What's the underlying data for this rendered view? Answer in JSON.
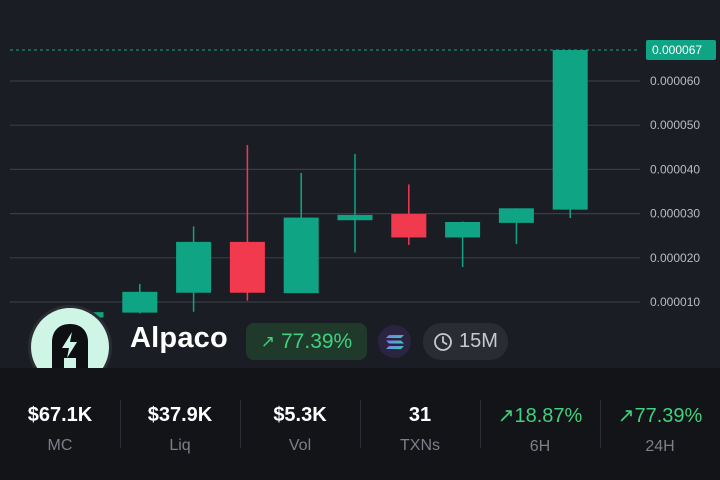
{
  "token": {
    "name": "Alpaco",
    "change": "77.39%",
    "change_arrow": "↗",
    "timeframe": "15M"
  },
  "colors": {
    "up": "#0fa584",
    "down": "#f23a4f",
    "positive_text": "#3fd17f",
    "price_tag": "#0fa584"
  },
  "icons": {
    "logo": "alpaco-logo",
    "chain": "solana-icon",
    "timeframe": "clock-icon",
    "trend": "arrow-up-right-icon"
  },
  "chart_data": {
    "type": "candlestick",
    "y_ticks": [
      "0.000060",
      "0.000050",
      "0.000040",
      "0.000030",
      "0.000020",
      "0.000010"
    ],
    "last_price_label": "0.000067",
    "last_price": 6.7e-05,
    "candles": [
      {
        "o": 6.5e-06,
        "h": 7.7e-06,
        "l": 6e-06,
        "c": 7.7e-06
      },
      {
        "o": 7.6e-06,
        "h": 1.41e-05,
        "l": 7.4e-06,
        "c": 1.23e-05
      },
      {
        "o": 1.21e-05,
        "h": 2.71e-05,
        "l": 7.8e-06,
        "c": 2.36e-05
      },
      {
        "o": 2.36e-05,
        "h": 4.55e-05,
        "l": 1.03e-05,
        "c": 1.21e-05
      },
      {
        "o": 1.2e-05,
        "h": 3.92e-05,
        "l": 1.2e-05,
        "c": 2.91e-05
      },
      {
        "o": 2.85e-05,
        "h": 4.35e-05,
        "l": 2.12e-05,
        "c": 2.97e-05
      },
      {
        "o": 2.99e-05,
        "h": 3.66e-05,
        "l": 2.29e-05,
        "c": 2.46e-05
      },
      {
        "o": 2.46e-05,
        "h": 2.82e-05,
        "l": 1.79e-05,
        "c": 2.81e-05
      },
      {
        "o": 2.79e-05,
        "h": 3.12e-05,
        "l": 2.31e-05,
        "c": 3.12e-05
      },
      {
        "o": 3.09e-05,
        "h": 6.7e-05,
        "l": 2.9e-05,
        "c": 6.7e-05
      }
    ]
  },
  "stats": [
    {
      "value": "$67.1K",
      "label": "MC",
      "positive": false
    },
    {
      "value": "$37.9K",
      "label": "Liq",
      "positive": false
    },
    {
      "value": "$5.3K",
      "label": "Vol",
      "positive": false
    },
    {
      "value": "31",
      "label": "TXNs",
      "positive": false
    },
    {
      "value": "18.87%",
      "label": "6H",
      "positive": true,
      "arrow": "↗"
    },
    {
      "value": "77.39%",
      "label": "24H",
      "positive": true,
      "arrow": "↗"
    }
  ]
}
